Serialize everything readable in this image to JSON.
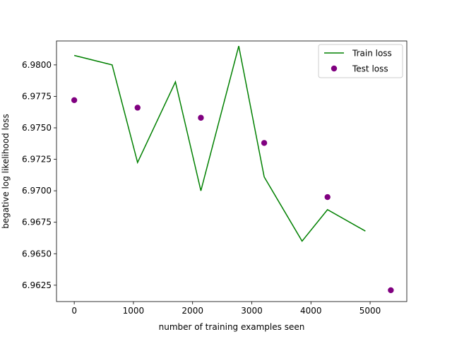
{
  "chart_data": {
    "type": "line",
    "title": "",
    "xlabel": "number of training examples seen",
    "ylabel": "begative log likelihood loss",
    "xlim": [
      -300,
      5620
    ],
    "ylim": [
      6.9612,
      6.9819
    ],
    "xticks": [
      0,
      1000,
      2000,
      3000,
      4000,
      5000
    ],
    "xtick_labels": [
      "0",
      "1000",
      "2000",
      "3000",
      "4000",
      "5000"
    ],
    "yticks": [
      6.9625,
      6.965,
      6.9675,
      6.97,
      6.9725,
      6.975,
      6.9775,
      6.98
    ],
    "ytick_labels": [
      "6.9625",
      "6.9650",
      "6.9675",
      "6.9700",
      "6.9725",
      "6.9750",
      "6.9775",
      "6.9800"
    ],
    "grid": false,
    "legend_position": "upper right",
    "series": [
      {
        "name": "Train loss",
        "kind": "line",
        "color": "#008000",
        "x": [
          0,
          640,
          1070,
          1710,
          2140,
          2780,
          3210,
          3850,
          4280,
          4920
        ],
        "y": [
          6.98075,
          6.98,
          6.97225,
          6.97865,
          6.97,
          6.9815,
          6.9711,
          6.966,
          6.9685,
          6.9668
        ]
      },
      {
        "name": "Test loss",
        "kind": "scatter",
        "color": "#800080",
        "x": [
          0,
          1070,
          2140,
          3210,
          4280,
          5350
        ],
        "y": [
          6.9772,
          6.9766,
          6.9758,
          6.9738,
          6.9695,
          6.9621
        ]
      }
    ]
  }
}
